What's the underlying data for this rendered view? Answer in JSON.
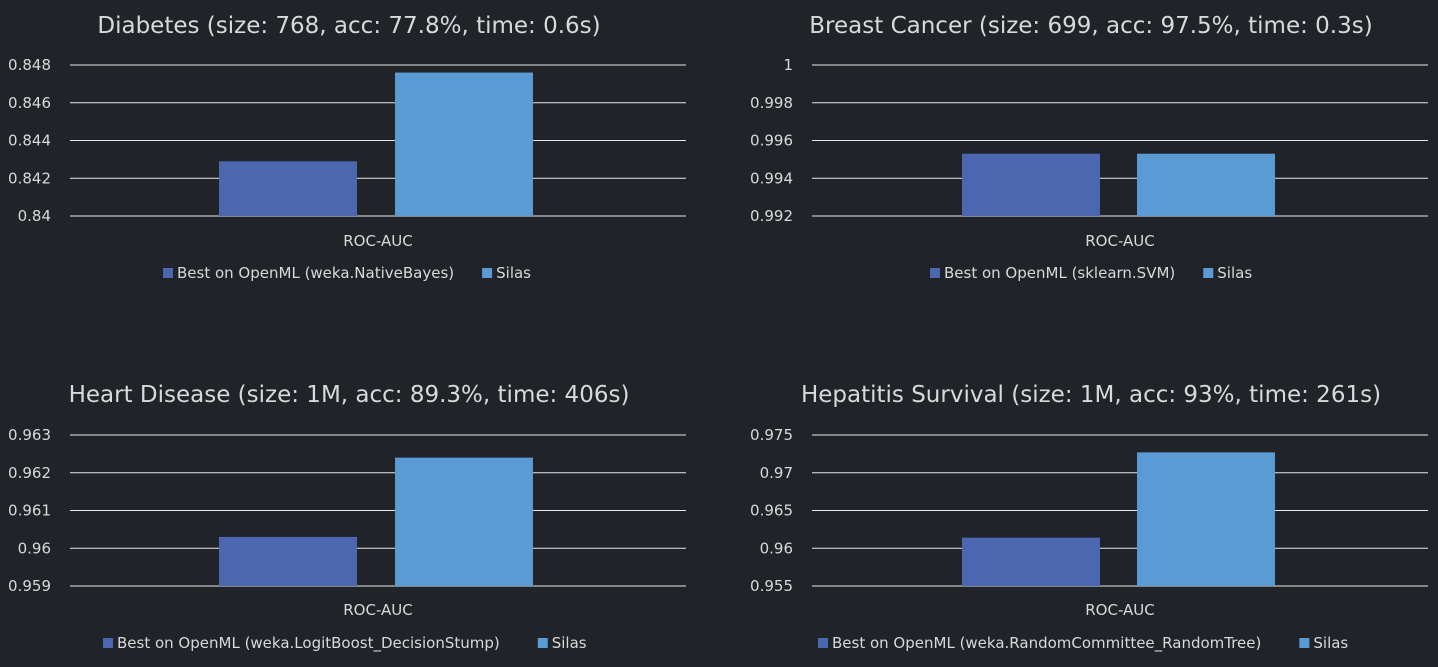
{
  "colors": {
    "series_1": "#4a67b0",
    "series_2": "#5b9bd5"
  },
  "chart_data": [
    {
      "type": "bar",
      "title": "Diabetes (size: 768, acc: 77.8%, time: 0.6s)",
      "categories": [
        "ROC-AUC"
      ],
      "series": [
        {
          "name": "Best on OpenML (weka.NativeBayes)",
          "values": [
            0.8429
          ]
        },
        {
          "name": "Silas",
          "values": [
            0.8476
          ]
        }
      ],
      "ylim": [
        0.84,
        0.848
      ],
      "yticks": [
        0.84,
        0.842,
        0.844,
        0.846,
        0.848
      ],
      "ytick_labels": [
        "0.84",
        "0.842",
        "0.844",
        "0.846",
        "0.848"
      ],
      "grid": true,
      "legend_position": "bottom"
    },
    {
      "type": "bar",
      "title": "Breast Cancer (size: 699, acc: 97.5%, time: 0.3s)",
      "categories": [
        "ROC-AUC"
      ],
      "series": [
        {
          "name": "Best on OpenML (sklearn.SVM)",
          "values": [
            0.9953
          ]
        },
        {
          "name": "Silas",
          "values": [
            0.9953
          ]
        }
      ],
      "ylim": [
        0.992,
        1
      ],
      "yticks": [
        0.992,
        0.994,
        0.996,
        0.998,
        1
      ],
      "ytick_labels": [
        "0.992",
        "0.994",
        "0.996",
        "0.998",
        "1"
      ],
      "grid": true,
      "legend_position": "bottom"
    },
    {
      "type": "bar",
      "title": "Heart Disease (size: 1M, acc: 89.3%, time: 406s)",
      "categories": [
        "ROC-AUC"
      ],
      "series": [
        {
          "name": "Best on OpenML (weka.LogitBoost_DecisionStump)",
          "values": [
            0.9603
          ]
        },
        {
          "name": "Silas",
          "values": [
            0.9624
          ]
        }
      ],
      "ylim": [
        0.959,
        0.963
      ],
      "yticks": [
        0.959,
        0.96,
        0.961,
        0.962,
        0.963
      ],
      "ytick_labels": [
        "0.959",
        "0.96",
        "0.961",
        "0.962",
        "0.963"
      ],
      "grid": true,
      "legend_position": "bottom"
    },
    {
      "type": "bar",
      "title": "Hepatitis Survival (size: 1M, acc: 93%, time: 261s)",
      "categories": [
        "ROC-AUC"
      ],
      "series": [
        {
          "name": "Best on OpenML (weka.RandomCommittee_RandomTree)",
          "values": [
            0.9614
          ]
        },
        {
          "name": "Silas",
          "values": [
            0.9727
          ]
        }
      ],
      "ylim": [
        0.955,
        0.975
      ],
      "yticks": [
        0.955,
        0.96,
        0.965,
        0.97,
        0.975
      ],
      "ytick_labels": [
        "0.955",
        "0.96",
        "0.965",
        "0.97",
        "0.975"
      ],
      "grid": true,
      "legend_position": "bottom"
    }
  ]
}
